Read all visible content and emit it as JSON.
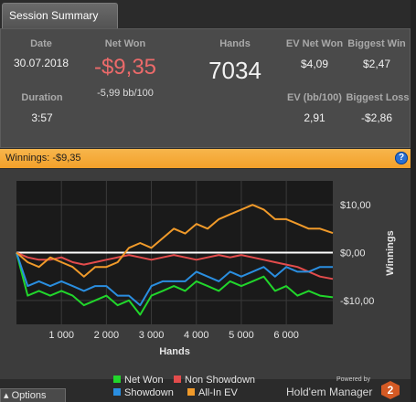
{
  "tab": {
    "label": "Session Summary"
  },
  "summary": {
    "date": {
      "label": "Date",
      "value": "30.07.2018"
    },
    "net_won": {
      "label": "Net Won",
      "value": "-$9,35",
      "sub": "-5,99 bb/100"
    },
    "hands": {
      "label": "Hands",
      "value": "7034"
    },
    "ev_net_won": {
      "label": "EV Net Won",
      "value": "$4,09"
    },
    "biggest_win": {
      "label": "Biggest Win",
      "value": "$2,47"
    },
    "duration": {
      "label": "Duration",
      "value": "3:57"
    },
    "ev_bb100": {
      "label": "EV (bb/100)",
      "value": "2,91"
    },
    "biggest_loss": {
      "label": "Biggest Loss",
      "value": "-$2,86"
    }
  },
  "banner": {
    "text": "Winnings:  -$9,35",
    "help": "?"
  },
  "colors": {
    "net_won": "#21d62b",
    "non_showdown": "#e34c4c",
    "showdown": "#2a8ee0",
    "all_in_ev": "#f09a2a",
    "net_won_value": "#ec6a6a"
  },
  "chart_data": {
    "type": "line",
    "xlabel": "Hands",
    "ylabel": "Winnings",
    "xlim": [
      0,
      7034
    ],
    "ylim": [
      -15,
      15
    ],
    "x_ticks": [
      1000,
      2000,
      3000,
      4000,
      5000,
      6000
    ],
    "x_tick_labels": [
      "1 000",
      "2 000",
      "3 000",
      "4 000",
      "5 000",
      "6 000"
    ],
    "y_ticks": [
      10,
      0,
      -10
    ],
    "y_tick_labels": [
      "$10,00",
      "$0,00",
      "-$10,00"
    ],
    "grid": true,
    "legend_position": "bottom",
    "x": [
      0,
      250,
      500,
      750,
      1000,
      1250,
      1500,
      1750,
      2000,
      2250,
      2500,
      2750,
      3000,
      3250,
      3500,
      3750,
      4000,
      4250,
      4500,
      4750,
      5000,
      5250,
      5500,
      5750,
      6000,
      6250,
      6500,
      6750,
      7034
    ],
    "series": [
      {
        "name": "Net Won",
        "values": [
          0,
          -9,
          -8,
          -9,
          -8,
          -9,
          -11,
          -10,
          -9,
          -11,
          -10,
          -13,
          -9,
          -8,
          -7,
          -8,
          -6,
          -7,
          -8,
          -6,
          -7,
          -6,
          -5,
          -8,
          -7,
          -9,
          -8,
          -9,
          -9.35
        ]
      },
      {
        "name": "Non Showdown",
        "values": [
          0,
          -1,
          -1.5,
          -1.5,
          -1,
          -2,
          -2.5,
          -2,
          -1.5,
          -1,
          -0.5,
          -1,
          -1.5,
          -1,
          -0.5,
          -1,
          -1.5,
          -1,
          -0.5,
          -1,
          -0.5,
          -1,
          -1.5,
          -2,
          -2.5,
          -3,
          -4,
          -5,
          -5.5
        ]
      },
      {
        "name": "Showdown",
        "values": [
          0,
          -7,
          -6,
          -7,
          -6,
          -7,
          -8,
          -7,
          -7,
          -9,
          -9,
          -11,
          -7,
          -6,
          -6,
          -6,
          -4,
          -5,
          -6,
          -4,
          -5,
          -4,
          -3,
          -5,
          -3,
          -4,
          -4,
          -3,
          -3
        ]
      },
      {
        "name": "All-In EV",
        "values": [
          0,
          -2,
          -3,
          -1,
          -2,
          -3,
          -5,
          -3,
          -3,
          -2,
          1,
          2,
          1,
          3,
          5,
          4,
          6,
          5,
          7,
          8,
          9,
          10,
          9,
          7,
          7,
          6,
          5,
          5,
          4.09
        ]
      }
    ]
  },
  "legend": [
    "Net Won",
    "Non Showdown",
    "Showdown",
    "All-In EV"
  ],
  "footer": {
    "options": "Options",
    "powered": "Powered by",
    "brand": "Hold'em Manager",
    "logo": "2"
  }
}
